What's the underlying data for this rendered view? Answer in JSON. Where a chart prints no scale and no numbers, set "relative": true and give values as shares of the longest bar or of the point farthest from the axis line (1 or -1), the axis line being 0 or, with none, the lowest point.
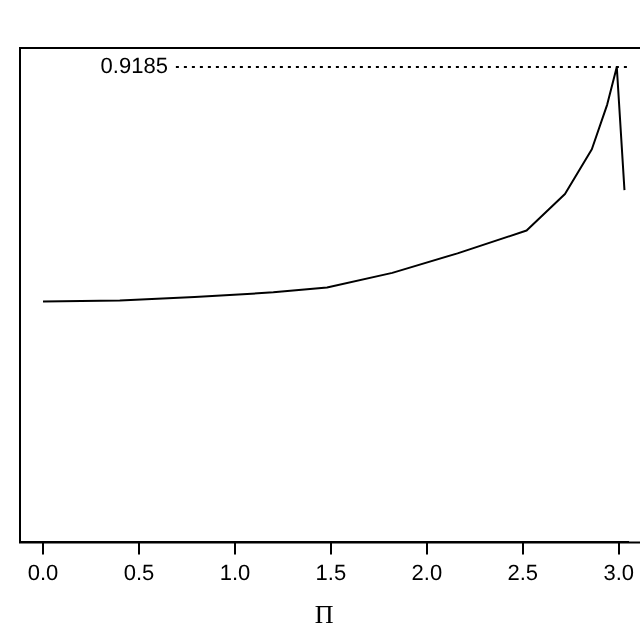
{
  "chart_data": {
    "type": "line",
    "relative": true,
    "xlabel": "Π",
    "xlim": [
      -0.12,
      3.05
    ],
    "xticks": [
      {
        "value": 0,
        "label": "0.0"
      },
      {
        "value": 0.5,
        "label": "0.5"
      },
      {
        "value": 1,
        "label": "1.0"
      },
      {
        "value": 1.5,
        "label": "1.5"
      },
      {
        "value": 2,
        "label": "2.0"
      },
      {
        "value": 2.5,
        "label": "2.5"
      },
      {
        "value": 3,
        "label": "3.0"
      }
    ],
    "series": [
      {
        "color": "#000000",
        "x": [
          0,
          0.4,
          0.79,
          1.2,
          1.48,
          1.82,
          2.16,
          2.52,
          2.72,
          2.86,
          2.94,
          2.99,
          3.03
        ],
        "values": [
          0.507,
          0.509,
          0.516,
          0.526,
          0.536,
          0.567,
          0.608,
          0.656,
          0.733,
          0.827,
          0.921,
          1,
          0.741
        ]
      }
    ],
    "ref_lines": [
      {
        "axis": "y",
        "value": 1,
        "line_style": "dotted",
        "color": "#000000"
      }
    ],
    "annotations": [
      "0.9185"
    ],
    "marker": "none",
    "line_style": "solid",
    "grid": false,
    "legend": false
  }
}
